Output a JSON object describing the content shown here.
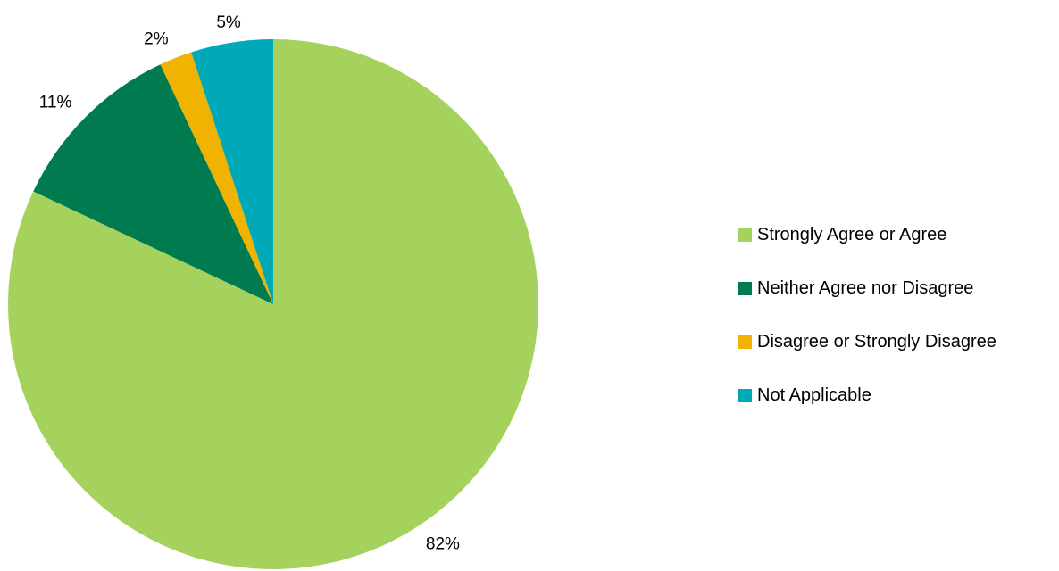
{
  "chart_data": {
    "type": "pie",
    "title": "",
    "categories": [
      "Strongly Agree or Agree",
      "Neither Agree nor Disagree",
      "Disagree or Strongly Disagree",
      "Not Applicable"
    ],
    "values": [
      82,
      11,
      2,
      5
    ],
    "value_labels": [
      "82%",
      "11%",
      "2%",
      "5%"
    ],
    "colors": [
      "#a5d25c",
      "#007a4f",
      "#f0b400",
      "#00a9b8"
    ],
    "start_angle_deg": 0,
    "direction": "clockwise",
    "legend_position": "right"
  },
  "legend": {
    "items": [
      {
        "label": "Strongly Agree or Agree",
        "color": "#a5d25c"
      },
      {
        "label": "Neither Agree nor Disagree",
        "color": "#007a4f"
      },
      {
        "label": "Disagree or Strongly Disagree",
        "color": "#f0b400"
      },
      {
        "label": "Not Applicable",
        "color": "#00a9b8"
      }
    ]
  }
}
